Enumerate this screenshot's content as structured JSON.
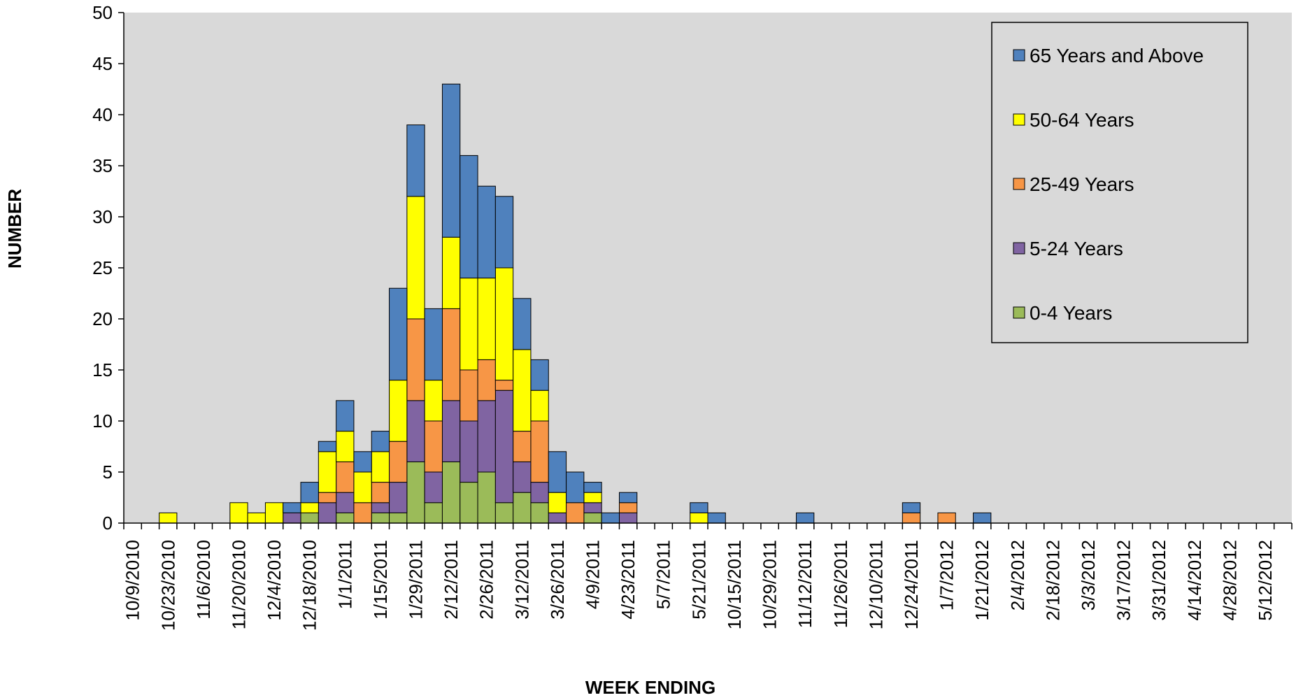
{
  "chart_data": {
    "type": "bar",
    "stacked": true,
    "title": "",
    "xlabel": "WEEK ENDING",
    "ylabel": "NUMBER",
    "ylim": [
      0,
      50
    ],
    "yticks": [
      0,
      5,
      10,
      15,
      20,
      25,
      30,
      35,
      40,
      45,
      50
    ],
    "grid": false,
    "legend_position": "top-right",
    "plot_background": "#d9d9d9",
    "categories": [
      "10/9/2010",
      "10/16/2010",
      "10/23/2010",
      "10/30/2010",
      "11/6/2010",
      "11/13/2010",
      "11/20/2010",
      "11/27/2010",
      "12/4/2010",
      "12/11/2010",
      "12/18/2010",
      "12/25/2010",
      "1/1/2011",
      "1/8/2011",
      "1/15/2011",
      "1/22/2011",
      "1/29/2011",
      "2/5/2011",
      "2/12/2011",
      "2/19/2011",
      "2/26/2011",
      "3/5/2011",
      "3/12/2011",
      "3/19/2011",
      "3/26/2011",
      "4/2/2011",
      "4/9/2011",
      "4/16/2011",
      "4/23/2011",
      "4/30/2011",
      "5/7/2011",
      "5/14/2011",
      "5/21/2011",
      "5/28/2011",
      "10/15/2011",
      "10/22/2011",
      "10/29/2011",
      "11/5/2011",
      "11/12/2011",
      "11/19/2011",
      "11/26/2011",
      "12/3/2011",
      "12/10/2011",
      "12/17/2011",
      "12/24/2011",
      "12/31/2011",
      "1/7/2012",
      "1/14/2012",
      "1/21/2012",
      "1/28/2012",
      "2/4/2012",
      "2/11/2012",
      "2/18/2012",
      "2/25/2012",
      "3/3/2012",
      "3/10/2012",
      "3/17/2012",
      "3/24/2012",
      "3/31/2012",
      "4/7/2012",
      "4/14/2012",
      "4/21/2012",
      "4/28/2012",
      "5/5/2012",
      "5/12/2012",
      "5/19/2012"
    ],
    "tick_labels": [
      "10/9/2010",
      "10/23/2010",
      "11/6/2010",
      "11/20/2010",
      "12/4/2010",
      "12/18/2010",
      "1/1/2011",
      "1/15/2011",
      "1/29/2011",
      "2/12/2011",
      "2/26/2011",
      "3/12/2011",
      "3/26/2011",
      "4/9/2011",
      "4/23/2011",
      "5/7/2011",
      "5/21/2011",
      "10/15/2011",
      "10/29/2011",
      "11/12/2011",
      "11/26/2011",
      "12/10/2011",
      "12/24/2011",
      "1/7/2012",
      "1/21/2012",
      "2/4/2012",
      "2/18/2012",
      "3/3/2012",
      "3/17/2012",
      "3/31/2012",
      "4/14/2012",
      "4/28/2012",
      "5/12/2012"
    ],
    "series": [
      {
        "name": "0-4 Years",
        "color": "#9bbb59",
        "values": [
          0,
          0,
          0,
          0,
          0,
          0,
          0,
          0,
          0,
          0,
          1,
          0,
          1,
          0,
          1,
          1,
          6,
          2,
          6,
          4,
          5,
          2,
          3,
          2,
          0,
          0,
          1,
          0,
          0,
          0,
          0,
          0,
          0,
          0,
          0,
          0,
          0,
          0,
          0,
          0,
          0,
          0,
          0,
          0,
          0,
          0,
          0,
          0,
          0,
          0,
          0,
          0,
          0,
          0,
          0,
          0,
          0,
          0,
          0,
          0,
          0,
          0,
          0,
          0,
          0,
          0
        ]
      },
      {
        "name": "5-24 Years",
        "color": "#8064a2",
        "values": [
          0,
          0,
          0,
          0,
          0,
          0,
          0,
          0,
          0,
          1,
          0,
          2,
          2,
          0,
          1,
          3,
          6,
          3,
          6,
          6,
          7,
          11,
          3,
          2,
          1,
          0,
          1,
          0,
          1,
          0,
          0,
          0,
          0,
          0,
          0,
          0,
          0,
          0,
          0,
          0,
          0,
          0,
          0,
          0,
          0,
          0,
          0,
          0,
          0,
          0,
          0,
          0,
          0,
          0,
          0,
          0,
          0,
          0,
          0,
          0,
          0,
          0,
          0,
          0,
          0,
          0
        ]
      },
      {
        "name": "25-49 Years",
        "color": "#f79646",
        "values": [
          0,
          0,
          0,
          0,
          0,
          0,
          0,
          0,
          0,
          0,
          0,
          1,
          3,
          2,
          2,
          4,
          8,
          5,
          9,
          5,
          4,
          1,
          3,
          6,
          0,
          2,
          0,
          0,
          1,
          0,
          0,
          0,
          0,
          0,
          0,
          0,
          0,
          0,
          0,
          0,
          0,
          0,
          0,
          0,
          1,
          0,
          1,
          0,
          0,
          0,
          0,
          0,
          0,
          0,
          0,
          0,
          0,
          0,
          0,
          0,
          0,
          0,
          0,
          0,
          0,
          0
        ]
      },
      {
        "name": "50-64 Years",
        "color": "#ffff00",
        "values": [
          0,
          0,
          1,
          0,
          0,
          0,
          2,
          1,
          2,
          0,
          1,
          4,
          3,
          3,
          3,
          6,
          12,
          4,
          7,
          9,
          8,
          11,
          8,
          3,
          2,
          0,
          1,
          0,
          0,
          0,
          0,
          0,
          1,
          0,
          0,
          0,
          0,
          0,
          0,
          0,
          0,
          0,
          0,
          0,
          0,
          0,
          0,
          0,
          0,
          0,
          0,
          0,
          0,
          0,
          0,
          0,
          0,
          0,
          0,
          0,
          0,
          0,
          0,
          0,
          0,
          0
        ]
      },
      {
        "name": "65 Years and Above",
        "color": "#4f81bd",
        "values": [
          0,
          0,
          0,
          0,
          0,
          0,
          0,
          0,
          0,
          1,
          2,
          1,
          3,
          2,
          2,
          9,
          7,
          7,
          15,
          12,
          9,
          7,
          5,
          3,
          4,
          3,
          1,
          1,
          1,
          0,
          0,
          0,
          1,
          1,
          0,
          0,
          0,
          0,
          1,
          0,
          0,
          0,
          0,
          0,
          1,
          0,
          0,
          0,
          1,
          0,
          0,
          0,
          0,
          0,
          0,
          0,
          0,
          0,
          0,
          0,
          0,
          0,
          0,
          0,
          0,
          0
        ]
      }
    ],
    "legend_order": [
      "65 Years and Above",
      "50-64 Years",
      "25-49 Years",
      "5-24 Years",
      "0-4 Years"
    ]
  }
}
